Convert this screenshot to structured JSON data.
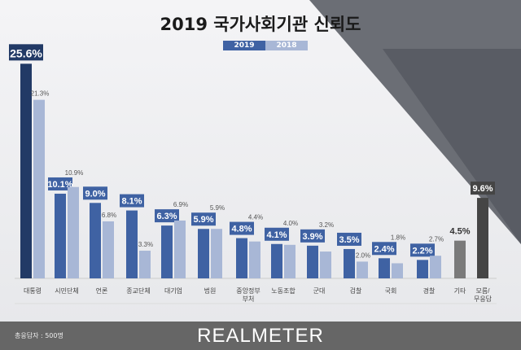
{
  "chart_data": {
    "type": "bar",
    "title": "2019 국가사회기관 신뢰도",
    "categories": [
      "대통령",
      "시민단체",
      "언론",
      "종교단체",
      "대기업",
      "법원",
      "중앙정부\n부처",
      "노동조합",
      "군대",
      "검찰",
      "국회",
      "경찰",
      "기타",
      "모름/\n무응답"
    ],
    "series": [
      {
        "name": "2019",
        "values": [
          25.6,
          10.1,
          9.0,
          8.1,
          6.3,
          5.9,
          4.8,
          4.1,
          3.9,
          3.5,
          2.4,
          2.2,
          4.5,
          9.6
        ]
      },
      {
        "name": "2018",
        "values": [
          21.3,
          10.9,
          6.8,
          3.3,
          6.9,
          5.9,
          4.4,
          4.0,
          3.2,
          2.0,
          1.8,
          2.7,
          null,
          null
        ]
      }
    ],
    "unit": "%",
    "colors": {
      "2019": "#3f62a3",
      "2019_highlight": "#223a66",
      "2018": "#a8b7d6",
      "other": "#7a7a7a",
      "unknown": "#454545"
    }
  },
  "legend": {
    "s2019": "2019",
    "s2018": "2018"
  },
  "footer": {
    "respondents": "총응답자 : 500명",
    "logo": "REALMETER"
  }
}
